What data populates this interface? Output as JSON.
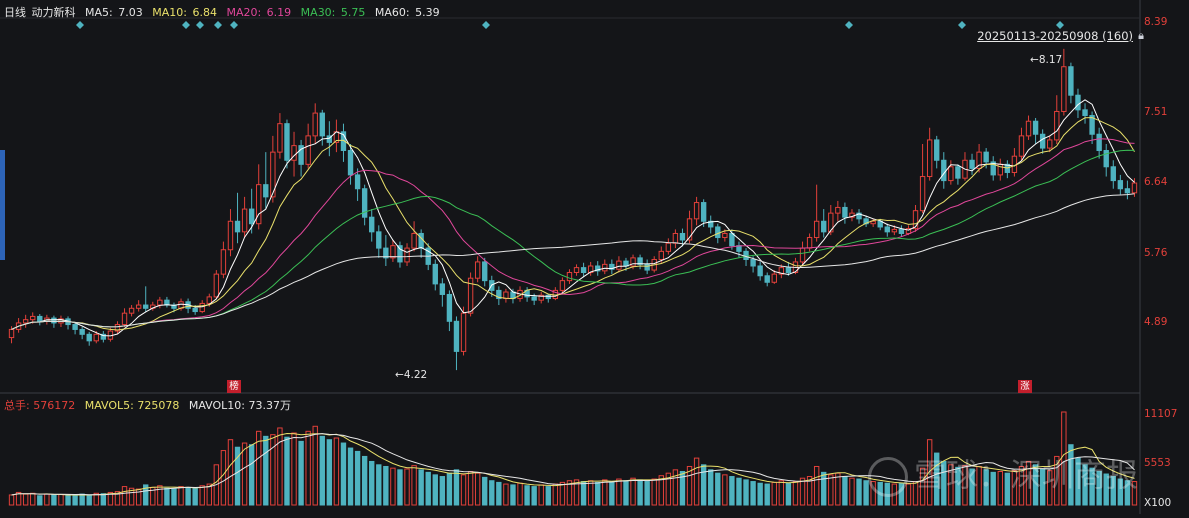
{
  "legend": {
    "period": "日线",
    "name": "动力新科",
    "ma5_label": "MA5:",
    "ma5": "7.03",
    "ma10_label": "MA10:",
    "ma10": "6.84",
    "ma20_label": "MA20:",
    "ma20": "6.19",
    "ma30_label": "MA30:",
    "ma30": "5.75",
    "ma60_label": "MA60:",
    "ma60": "5.39"
  },
  "volume_legend": {
    "total_label": "总手:",
    "total": "576172",
    "mavol5_label": "MAVOL5:",
    "mavol5": "725078",
    "mavol10_label": "MAVOL10:",
    "mavol10": "73.37万"
  },
  "range_label": "20250113-20250908 (160)",
  "lock_icon": "lock-icon",
  "price_ticks": [
    "8.39",
    "7.51",
    "6.64",
    "5.76",
    "4.89"
  ],
  "volume_ticks": [
    "11107",
    "5553",
    "X100"
  ],
  "annotations": {
    "high": "8.17",
    "low": "4.22",
    "badge1": "榜",
    "badge2": "涨"
  },
  "watermark": "雪球：深圳商报",
  "colors": {
    "background": "#141518",
    "up": "#e2403a",
    "down": "#4fb3c0",
    "ma5": "#ffffff",
    "ma10": "#e9e06b",
    "ma20": "#e0479a",
    "ma30": "#3bbf55",
    "ma60": "#e6e6e6",
    "tick_price": "#e2403a",
    "diamond": "#4fb3c0"
  },
  "chart_data": {
    "type": "candlestick",
    "y_range": [
      4.0,
      8.5
    ],
    "volume_axis_max": 11107,
    "volume_unit": "X100",
    "high_marker": 8.17,
    "low_marker": 4.22,
    "candles": [
      [
        4.62,
        4.72,
        4.55,
        4.76
      ],
      [
        4.72,
        4.8,
        4.68,
        4.86
      ],
      [
        4.8,
        4.84,
        4.74,
        4.9
      ],
      [
        4.84,
        4.88,
        4.79,
        4.93
      ],
      [
        4.88,
        4.82,
        4.77,
        4.91
      ],
      [
        4.82,
        4.86,
        4.78,
        4.9
      ],
      [
        4.86,
        4.8,
        4.74,
        4.89
      ],
      [
        4.8,
        4.85,
        4.75,
        4.89
      ],
      [
        4.85,
        4.78,
        4.72,
        4.88
      ],
      [
        4.78,
        4.72,
        4.66,
        4.8
      ],
      [
        4.72,
        4.66,
        4.6,
        4.75
      ],
      [
        4.66,
        4.58,
        4.52,
        4.69
      ],
      [
        4.58,
        4.66,
        4.55,
        4.7
      ],
      [
        4.66,
        4.6,
        4.56,
        4.7
      ],
      [
        4.6,
        4.7,
        4.57,
        4.74
      ],
      [
        4.7,
        4.78,
        4.66,
        4.82
      ],
      [
        4.78,
        4.92,
        4.75,
        4.98
      ],
      [
        4.92,
        4.98,
        4.88,
        5.02
      ],
      [
        4.98,
        5.02,
        4.94,
        5.08
      ],
      [
        5.02,
        4.98,
        4.93,
        5.25
      ],
      [
        4.98,
        5.02,
        4.95,
        5.06
      ],
      [
        5.02,
        5.08,
        4.98,
        5.12
      ],
      [
        5.08,
        5.02,
        4.99,
        5.12
      ],
      [
        5.02,
        4.98,
        4.93,
        5.05
      ],
      [
        4.98,
        5.06,
        4.95,
        5.1
      ],
      [
        5.06,
        4.98,
        4.92,
        5.1
      ],
      [
        4.98,
        4.94,
        4.9,
        5.02
      ],
      [
        4.94,
        5.04,
        4.92,
        5.08
      ],
      [
        5.04,
        5.12,
        5.0,
        5.16
      ],
      [
        5.12,
        5.4,
        5.1,
        5.45
      ],
      [
        5.4,
        5.7,
        5.35,
        5.8
      ],
      [
        5.7,
        6.05,
        5.62,
        6.2
      ],
      [
        6.05,
        5.92,
        5.78,
        6.4
      ],
      [
        5.92,
        6.2,
        5.85,
        6.35
      ],
      [
        6.2,
        6.02,
        5.9,
        6.45
      ],
      [
        6.02,
        6.5,
        5.95,
        6.75
      ],
      [
        6.5,
        6.35,
        6.2,
        6.9
      ],
      [
        6.35,
        6.9,
        6.28,
        7.1
      ],
      [
        6.9,
        7.25,
        6.82,
        7.38
      ],
      [
        7.25,
        6.8,
        6.7,
        7.3
      ],
      [
        6.8,
        6.98,
        6.6,
        7.15
      ],
      [
        6.98,
        6.75,
        6.6,
        7.05
      ],
      [
        6.75,
        7.1,
        6.7,
        7.25
      ],
      [
        7.1,
        7.38,
        7.0,
        7.5
      ],
      [
        7.38,
        7.1,
        6.98,
        7.42
      ],
      [
        7.1,
        7.02,
        6.85,
        7.28
      ],
      [
        7.02,
        7.15,
        6.9,
        7.3
      ],
      [
        7.15,
        6.92,
        6.78,
        7.25
      ],
      [
        6.92,
        6.62,
        6.5,
        7.0
      ],
      [
        6.62,
        6.45,
        6.3,
        6.7
      ],
      [
        6.45,
        6.1,
        6.0,
        6.5
      ],
      [
        6.1,
        5.92,
        5.8,
        6.2
      ],
      [
        5.92,
        5.72,
        5.6,
        6.0
      ],
      [
        5.72,
        5.6,
        5.5,
        5.88
      ],
      [
        5.6,
        5.75,
        5.55,
        5.82
      ],
      [
        5.75,
        5.55,
        5.48,
        5.8
      ],
      [
        5.55,
        5.72,
        5.5,
        5.78
      ],
      [
        5.72,
        5.9,
        5.68,
        6.05
      ],
      [
        5.9,
        5.72,
        5.6,
        5.95
      ],
      [
        5.72,
        5.52,
        5.45,
        5.78
      ],
      [
        5.52,
        5.28,
        5.2,
        5.58
      ],
      [
        5.28,
        5.15,
        5.0,
        5.35
      ],
      [
        5.15,
        4.82,
        4.7,
        5.2
      ],
      [
        4.82,
        4.45,
        4.22,
        4.88
      ],
      [
        4.45,
        4.92,
        4.4,
        5.0
      ],
      [
        4.92,
        5.35,
        4.88,
        5.42
      ],
      [
        5.35,
        5.55,
        5.3,
        5.62
      ],
      [
        5.55,
        5.32,
        5.25,
        5.6
      ],
      [
        5.32,
        5.2,
        5.12,
        5.38
      ],
      [
        5.2,
        5.1,
        5.02,
        5.25
      ],
      [
        5.1,
        5.18,
        5.05,
        5.22
      ],
      [
        5.18,
        5.1,
        5.04,
        5.22
      ],
      [
        5.1,
        5.2,
        5.06,
        5.25
      ],
      [
        5.2,
        5.12,
        5.06,
        5.24
      ],
      [
        5.12,
        5.08,
        5.02,
        5.16
      ],
      [
        5.08,
        5.14,
        5.04,
        5.18
      ],
      [
        5.14,
        5.1,
        5.05,
        5.16
      ],
      [
        5.1,
        5.2,
        5.08,
        5.24
      ],
      [
        5.2,
        5.32,
        5.16,
        5.36
      ],
      [
        5.32,
        5.42,
        5.28,
        5.46
      ],
      [
        5.42,
        5.48,
        5.38,
        5.52
      ],
      [
        5.48,
        5.42,
        5.36,
        5.54
      ],
      [
        5.42,
        5.5,
        5.38,
        5.55
      ],
      [
        5.5,
        5.44,
        5.38,
        5.56
      ],
      [
        5.44,
        5.52,
        5.4,
        5.58
      ],
      [
        5.52,
        5.46,
        5.4,
        5.58
      ],
      [
        5.46,
        5.56,
        5.42,
        5.62
      ],
      [
        5.56,
        5.5,
        5.44,
        5.6
      ],
      [
        5.5,
        5.6,
        5.46,
        5.64
      ],
      [
        5.6,
        5.52,
        5.46,
        5.64
      ],
      [
        5.52,
        5.45,
        5.4,
        5.58
      ],
      [
        5.45,
        5.58,
        5.42,
        5.62
      ],
      [
        5.58,
        5.68,
        5.54,
        5.74
      ],
      [
        5.68,
        5.78,
        5.64,
        5.84
      ],
      [
        5.78,
        5.9,
        5.72,
        5.95
      ],
      [
        5.9,
        5.82,
        5.74,
        5.96
      ],
      [
        5.82,
        6.08,
        5.78,
        6.18
      ],
      [
        6.08,
        6.28,
        6.0,
        6.35
      ],
      [
        6.28,
        6.05,
        5.98,
        6.32
      ],
      [
        6.05,
        5.98,
        5.9,
        6.12
      ],
      [
        5.98,
        5.85,
        5.78,
        6.02
      ],
      [
        5.85,
        5.9,
        5.8,
        5.95
      ],
      [
        5.9,
        5.75,
        5.7,
        5.95
      ],
      [
        5.75,
        5.68,
        5.6,
        5.8
      ],
      [
        5.68,
        5.58,
        5.5,
        5.72
      ],
      [
        5.58,
        5.5,
        5.42,
        5.62
      ],
      [
        5.5,
        5.38,
        5.32,
        5.55
      ],
      [
        5.38,
        5.3,
        5.25,
        5.42
      ],
      [
        5.3,
        5.4,
        5.28,
        5.45
      ],
      [
        5.4,
        5.48,
        5.35,
        5.52
      ],
      [
        5.48,
        5.42,
        5.38,
        5.55
      ],
      [
        5.42,
        5.55,
        5.4,
        5.6
      ],
      [
        5.55,
        5.72,
        5.5,
        5.8
      ],
      [
        5.72,
        5.85,
        5.68,
        5.9
      ],
      [
        5.85,
        6.05,
        5.8,
        6.5
      ],
      [
        6.05,
        5.92,
        5.85,
        6.2
      ],
      [
        5.92,
        6.15,
        5.88,
        6.25
      ],
      [
        6.15,
        6.22,
        6.05,
        6.3
      ],
      [
        6.22,
        6.1,
        6.02,
        6.28
      ],
      [
        6.1,
        6.15,
        6.05,
        6.2
      ],
      [
        6.15,
        6.08,
        6.02,
        6.2
      ],
      [
        6.08,
        6.02,
        5.98,
        6.12
      ],
      [
        6.02,
        6.05,
        5.98,
        6.08
      ],
      [
        6.05,
        5.98,
        5.94,
        6.08
      ],
      [
        5.98,
        5.92,
        5.86,
        6.02
      ],
      [
        5.92,
        5.95,
        5.88,
        6.0
      ],
      [
        5.95,
        5.9,
        5.86,
        6.0
      ],
      [
        5.9,
        5.96,
        5.88,
        6.0
      ],
      [
        5.96,
        6.18,
        5.92,
        6.25
      ],
      [
        6.18,
        6.6,
        6.15,
        7.0
      ],
      [
        6.6,
        7.05,
        6.55,
        7.2
      ],
      [
        7.05,
        6.8,
        6.7,
        7.1
      ],
      [
        6.8,
        6.55,
        6.45,
        6.9
      ],
      [
        6.55,
        6.72,
        6.5,
        6.8
      ],
      [
        6.72,
        6.58,
        6.5,
        6.75
      ],
      [
        6.58,
        6.8,
        6.55,
        6.9
      ],
      [
        6.8,
        6.7,
        6.62,
        6.88
      ],
      [
        6.7,
        6.9,
        6.65,
        7.0
      ],
      [
        6.9,
        6.78,
        6.7,
        6.95
      ],
      [
        6.78,
        6.62,
        6.55,
        6.85
      ],
      [
        6.62,
        6.75,
        6.55,
        6.82
      ],
      [
        6.75,
        6.65,
        6.58,
        6.8
      ],
      [
        6.65,
        6.85,
        6.6,
        6.95
      ],
      [
        6.85,
        7.1,
        6.8,
        7.2
      ],
      [
        7.1,
        7.28,
        7.05,
        7.35
      ],
      [
        7.28,
        7.12,
        7.0,
        7.32
      ],
      [
        7.12,
        6.95,
        6.88,
        7.18
      ],
      [
        6.95,
        7.05,
        6.9,
        7.1
      ],
      [
        7.05,
        7.4,
        7.0,
        7.6
      ],
      [
        7.4,
        7.95,
        7.35,
        8.17
      ],
      [
        7.95,
        7.6,
        7.5,
        8.0
      ],
      [
        7.6,
        7.42,
        7.32,
        7.68
      ],
      [
        7.42,
        7.35,
        7.25,
        7.5
      ],
      [
        7.35,
        7.12,
        7.0,
        7.4
      ],
      [
        7.12,
        6.92,
        6.82,
        7.2
      ],
      [
        6.92,
        6.72,
        6.6,
        7.0
      ],
      [
        6.72,
        6.55,
        6.45,
        6.8
      ],
      [
        6.55,
        6.45,
        6.38,
        6.62
      ],
      [
        6.45,
        6.4,
        6.32,
        6.55
      ],
      [
        6.4,
        6.52,
        6.35,
        6.58
      ]
    ],
    "volumes": [
      1200,
      1500,
      1300,
      1400,
      1100,
      1300,
      1200,
      1250,
      1150,
      1100,
      1300,
      1200,
      1400,
      1350,
      1500,
      1600,
      2200,
      2000,
      1900,
      2400,
      2100,
      2300,
      2000,
      1900,
      2200,
      2100,
      2000,
      2300,
      2500,
      4800,
      6500,
      7800,
      6900,
      7400,
      7200,
      8800,
      8200,
      8400,
      9200,
      8100,
      8600,
      7600,
      8800,
      9400,
      8200,
      7800,
      8000,
      7400,
      6800,
      6400,
      5800,
      5200,
      4800,
      4600,
      4400,
      4200,
      4300,
      4700,
      4200,
      3900,
      3600,
      3400,
      3800,
      4200,
      3600,
      4000,
      3800,
      3300,
      2900,
      2700,
      2500,
      2400,
      2600,
      2300,
      2200,
      2400,
      2200,
      2500,
      2700,
      2900,
      3000,
      2800,
      2900,
      2700,
      3000,
      2800,
      3100,
      2900,
      3200,
      3000,
      2800,
      3100,
      3500,
      3800,
      4200,
      4000,
      4600,
      5600,
      4800,
      4200,
      3800,
      3600,
      3400,
      3200,
      3000,
      2800,
      2600,
      2500,
      2700,
      2900,
      2600,
      2800,
      3200,
      3400,
      4600,
      3900,
      3600,
      3800,
      3400,
      3200,
      3100,
      2900,
      2800,
      2700,
      2600,
      2500,
      2600,
      2500,
      2800,
      4400,
      7800,
      6200,
      5200,
      4800,
      4500,
      4700,
      4300,
      4600,
      4200,
      3900,
      4000,
      3800,
      4100,
      4600,
      5200,
      4800,
      4300,
      4100,
      5800,
      11107,
      7200,
      5600,
      4800,
      4400,
      4000,
      3700,
      3400,
      3100,
      2900,
      2800
    ],
    "volume_up": null
  }
}
